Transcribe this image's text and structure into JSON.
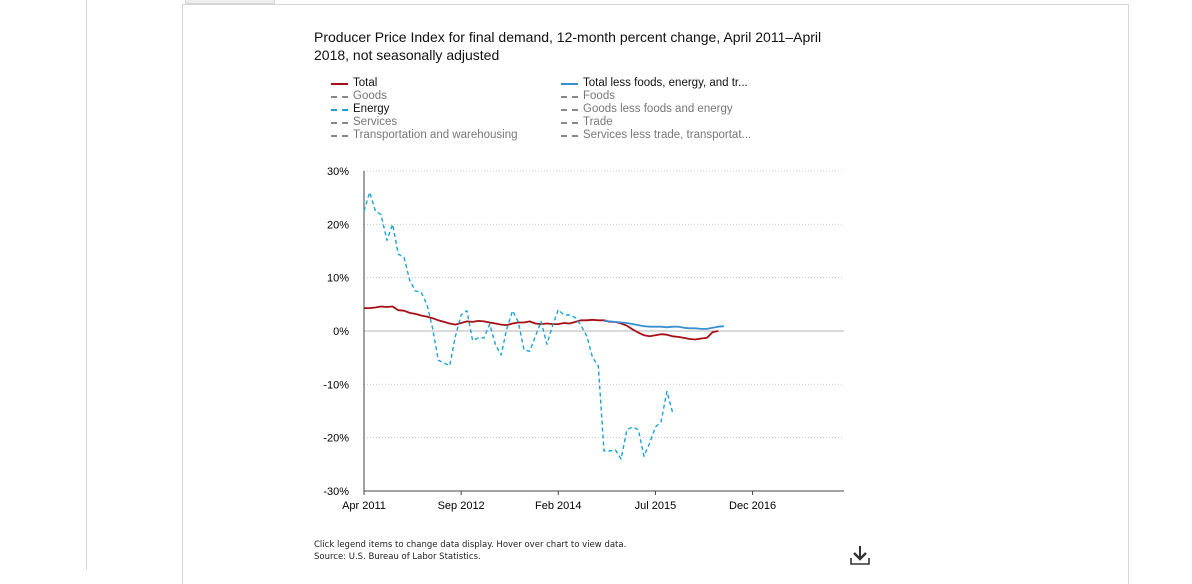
{
  "chart_data": {
    "type": "line",
    "title": "Producer Price Index for final demand, 12-month percent change, April 2011–April 2018, not seasonally adjusted",
    "x_axis": {
      "ticks": [
        "Apr 2011",
        "Sep 2012",
        "Feb 2014",
        "Jul 2015",
        "Dec 2016"
      ],
      "tick_months": [
        0,
        17,
        34,
        51,
        68
      ],
      "range_months": [
        0,
        84
      ]
    },
    "y_axis": {
      "ticks": [
        "30%",
        "20%",
        "10%",
        "0%",
        "-10%",
        "-20%",
        "-30%"
      ],
      "tick_values": [
        30,
        20,
        10,
        0,
        -10,
        -20,
        -30
      ],
      "ylim": [
        -30,
        30
      ]
    },
    "grid": true,
    "legend_position": "top",
    "legend": {
      "left": [
        {
          "label": "Total",
          "style": "solid",
          "color": "#a50f15",
          "active": true
        },
        {
          "label": "Goods",
          "style": "dashed",
          "color": "#888888",
          "active": false
        },
        {
          "label": "Energy",
          "style": "dashed",
          "color": "#19a3d6",
          "active": true
        },
        {
          "label": "Services",
          "style": "dashed",
          "color": "#888888",
          "active": false
        },
        {
          "label": "Transportation and warehousing",
          "style": "dashed",
          "color": "#888888",
          "active": false
        }
      ],
      "right": [
        {
          "label": "Total less foods, energy, and tr...",
          "style": "solid",
          "color": "#3a8fd0",
          "active": true
        },
        {
          "label": "Foods",
          "style": "dashed",
          "color": "#888888",
          "active": false
        },
        {
          "label": "Goods less foods and energy",
          "style": "dashed",
          "color": "#888888",
          "active": false
        },
        {
          "label": "Trade",
          "style": "dashed",
          "color": "#888888",
          "active": false
        },
        {
          "label": "Services less trade, transportat...",
          "style": "dashed",
          "color": "#888888",
          "active": false
        }
      ]
    },
    "series": [
      {
        "name": "Total",
        "color": "#a50f15",
        "style": "solid",
        "start": "Apr 2011",
        "values": [
          4.3,
          4.3,
          4.4,
          4.6,
          4.5,
          4.6,
          3.9,
          3.8,
          3.4,
          3.2,
          2.9,
          2.7,
          2.4,
          2.0,
          1.7,
          1.4,
          1.2,
          1.5,
          1.8,
          1.7,
          1.9,
          1.8,
          1.6,
          1.4,
          1.2,
          1.1,
          1.4,
          1.6,
          1.6,
          1.8,
          1.4,
          1.3,
          1.4,
          1.3,
          1.3,
          1.5,
          1.4,
          1.7,
          2.0,
          2.0,
          2.1,
          2.0,
          2.0,
          1.7,
          1.7,
          1.4,
          1.0,
          0.3,
          -0.3,
          -0.8,
          -1.0,
          -0.8,
          -0.6,
          -0.7,
          -1.0,
          -1.1,
          -1.3,
          -1.5,
          -1.6,
          -1.4,
          -1.3,
          -0.2,
          0.0
        ]
      },
      {
        "name": "Total less foods, energy, and tr...",
        "color": "#3a8fd0",
        "style": "solid",
        "start": "Apr 2011",
        "values": [
          null,
          null,
          null,
          null,
          null,
          null,
          null,
          null,
          null,
          null,
          null,
          null,
          null,
          null,
          null,
          null,
          null,
          null,
          null,
          null,
          null,
          null,
          null,
          null,
          null,
          null,
          null,
          null,
          null,
          null,
          null,
          null,
          null,
          null,
          null,
          null,
          null,
          null,
          null,
          null,
          null,
          null,
          1.9,
          1.8,
          1.7,
          1.6,
          1.5,
          1.3,
          1.1,
          0.9,
          0.8,
          0.8,
          0.8,
          0.7,
          0.8,
          0.8,
          0.6,
          0.5,
          0.5,
          0.4,
          0.4,
          0.6,
          0.8,
          0.9
        ]
      },
      {
        "name": "Energy",
        "color": "#19a3d6",
        "style": "dashed",
        "start": "Apr 2011",
        "values": [
          22.5,
          26.0,
          22.5,
          21.8,
          17.0,
          20.0,
          14.4,
          13.8,
          9.5,
          7.5,
          7.3,
          5.0,
          0.5,
          -5.5,
          -6.0,
          -6.5,
          -1.0,
          3.0,
          3.8,
          -1.8,
          -1.3,
          -1.3,
          1.3,
          -2.5,
          -4.5,
          0.5,
          3.8,
          1.7,
          -3.5,
          -3.8,
          -1.0,
          1.8,
          -2.5,
          1.0,
          4.0,
          3.0,
          3.0,
          2.5,
          1.0,
          -1.0,
          -5.0,
          -6.5,
          -22.5,
          -22.5,
          -22.3,
          -24.0,
          -18.5,
          -18.0,
          -18.5,
          -23.5,
          -21.0,
          -18.0,
          -17.0,
          -11.3,
          -15.3
        ]
      }
    ]
  },
  "footer": {
    "line1": "Click legend items to change data display. Hover over chart to view data.",
    "line2": "Source: U.S. Bureau of Labor Statistics."
  },
  "download_icon": "download-icon"
}
